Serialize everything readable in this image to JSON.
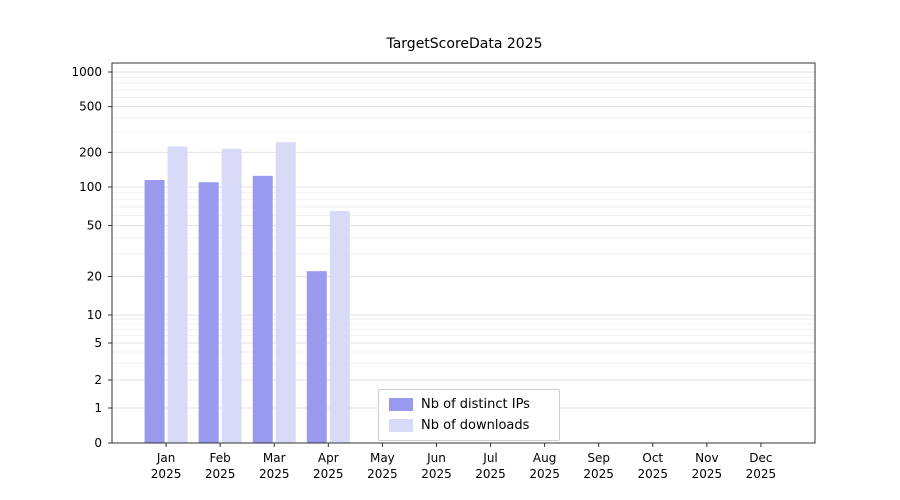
{
  "chart_data": {
    "type": "bar",
    "title": "TargetScoreData 2025",
    "categories": [
      "Jan 2025",
      "Feb 2025",
      "Mar 2025",
      "Apr 2025",
      "May 2025",
      "Jun 2025",
      "Jul 2025",
      "Aug 2025",
      "Sep 2025",
      "Oct 2025",
      "Nov 2025",
      "Dec 2025"
    ],
    "series": [
      {
        "name": "Nb of distinct IPs",
        "color": "#9999ed",
        "values": [
          115,
          110,
          125,
          22,
          0,
          0,
          0,
          0,
          0,
          0,
          0,
          0
        ]
      },
      {
        "name": "Nb of downloads",
        "color": "#d9d9f8",
        "values": [
          225,
          215,
          245,
          65,
          0,
          0,
          0,
          0,
          0,
          0,
          0,
          0
        ]
      }
    ],
    "yticks": [
      0,
      1,
      2,
      5,
      10,
      20,
      50,
      100,
      200,
      500,
      1000
    ],
    "yscale": "symlog",
    "ylim": [
      0,
      1000
    ],
    "grid": "horizontal-minor-and-major",
    "legend_position": "inside-bottom-center",
    "colors": {
      "grid_major": "#e3e3e3",
      "grid_minor": "#f0f0f0",
      "axis": "#333333",
      "text": "#000000"
    }
  }
}
